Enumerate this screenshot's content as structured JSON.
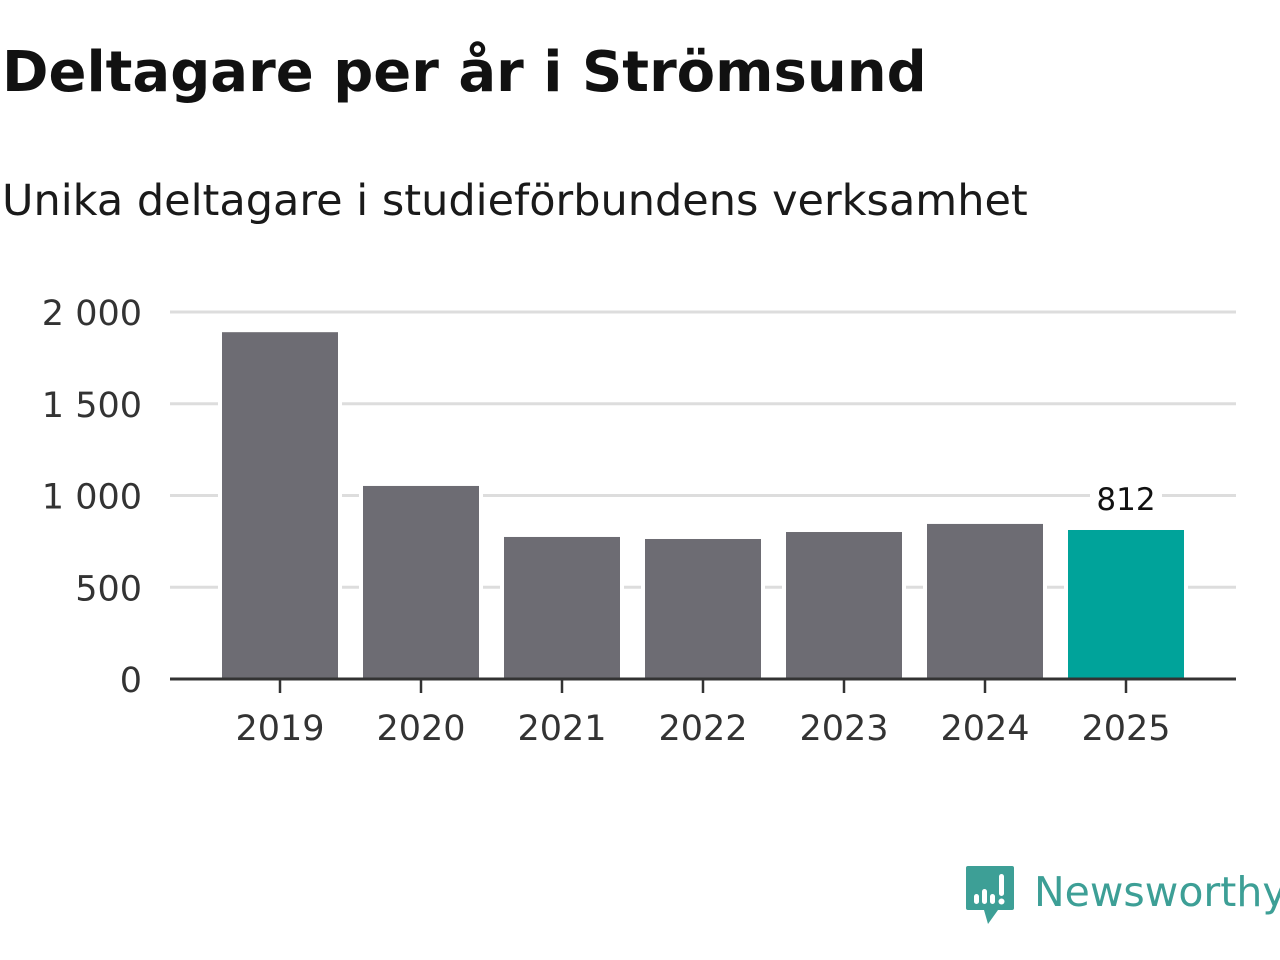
{
  "chart_data": {
    "type": "bar",
    "title": "Deltagare per år i Strömsund",
    "subtitle": "Unika deltagare i studieförbundens verksamhet",
    "categories": [
      "2019",
      "2020",
      "2021",
      "2022",
      "2023",
      "2024",
      "2025"
    ],
    "values": [
      1890,
      1052,
      774,
      763,
      801,
      845,
      812
    ],
    "highlight_index": 6,
    "data_labels": {
      "6": "812"
    },
    "ylim": [
      0,
      2000
    ],
    "yticks": [
      0,
      500,
      1000,
      1500,
      2000
    ],
    "ytick_labels": [
      "0",
      "500",
      "1 000",
      "1 500",
      "2 000"
    ],
    "xlabel": "",
    "ylabel": "",
    "grid": true,
    "colors": {
      "bar": "#6d6c73",
      "highlight": "#00a39a",
      "grid": "#dddddd",
      "axis": "#333333"
    }
  },
  "branding": {
    "name": "Newsworthy",
    "color": "#3d9f96"
  }
}
